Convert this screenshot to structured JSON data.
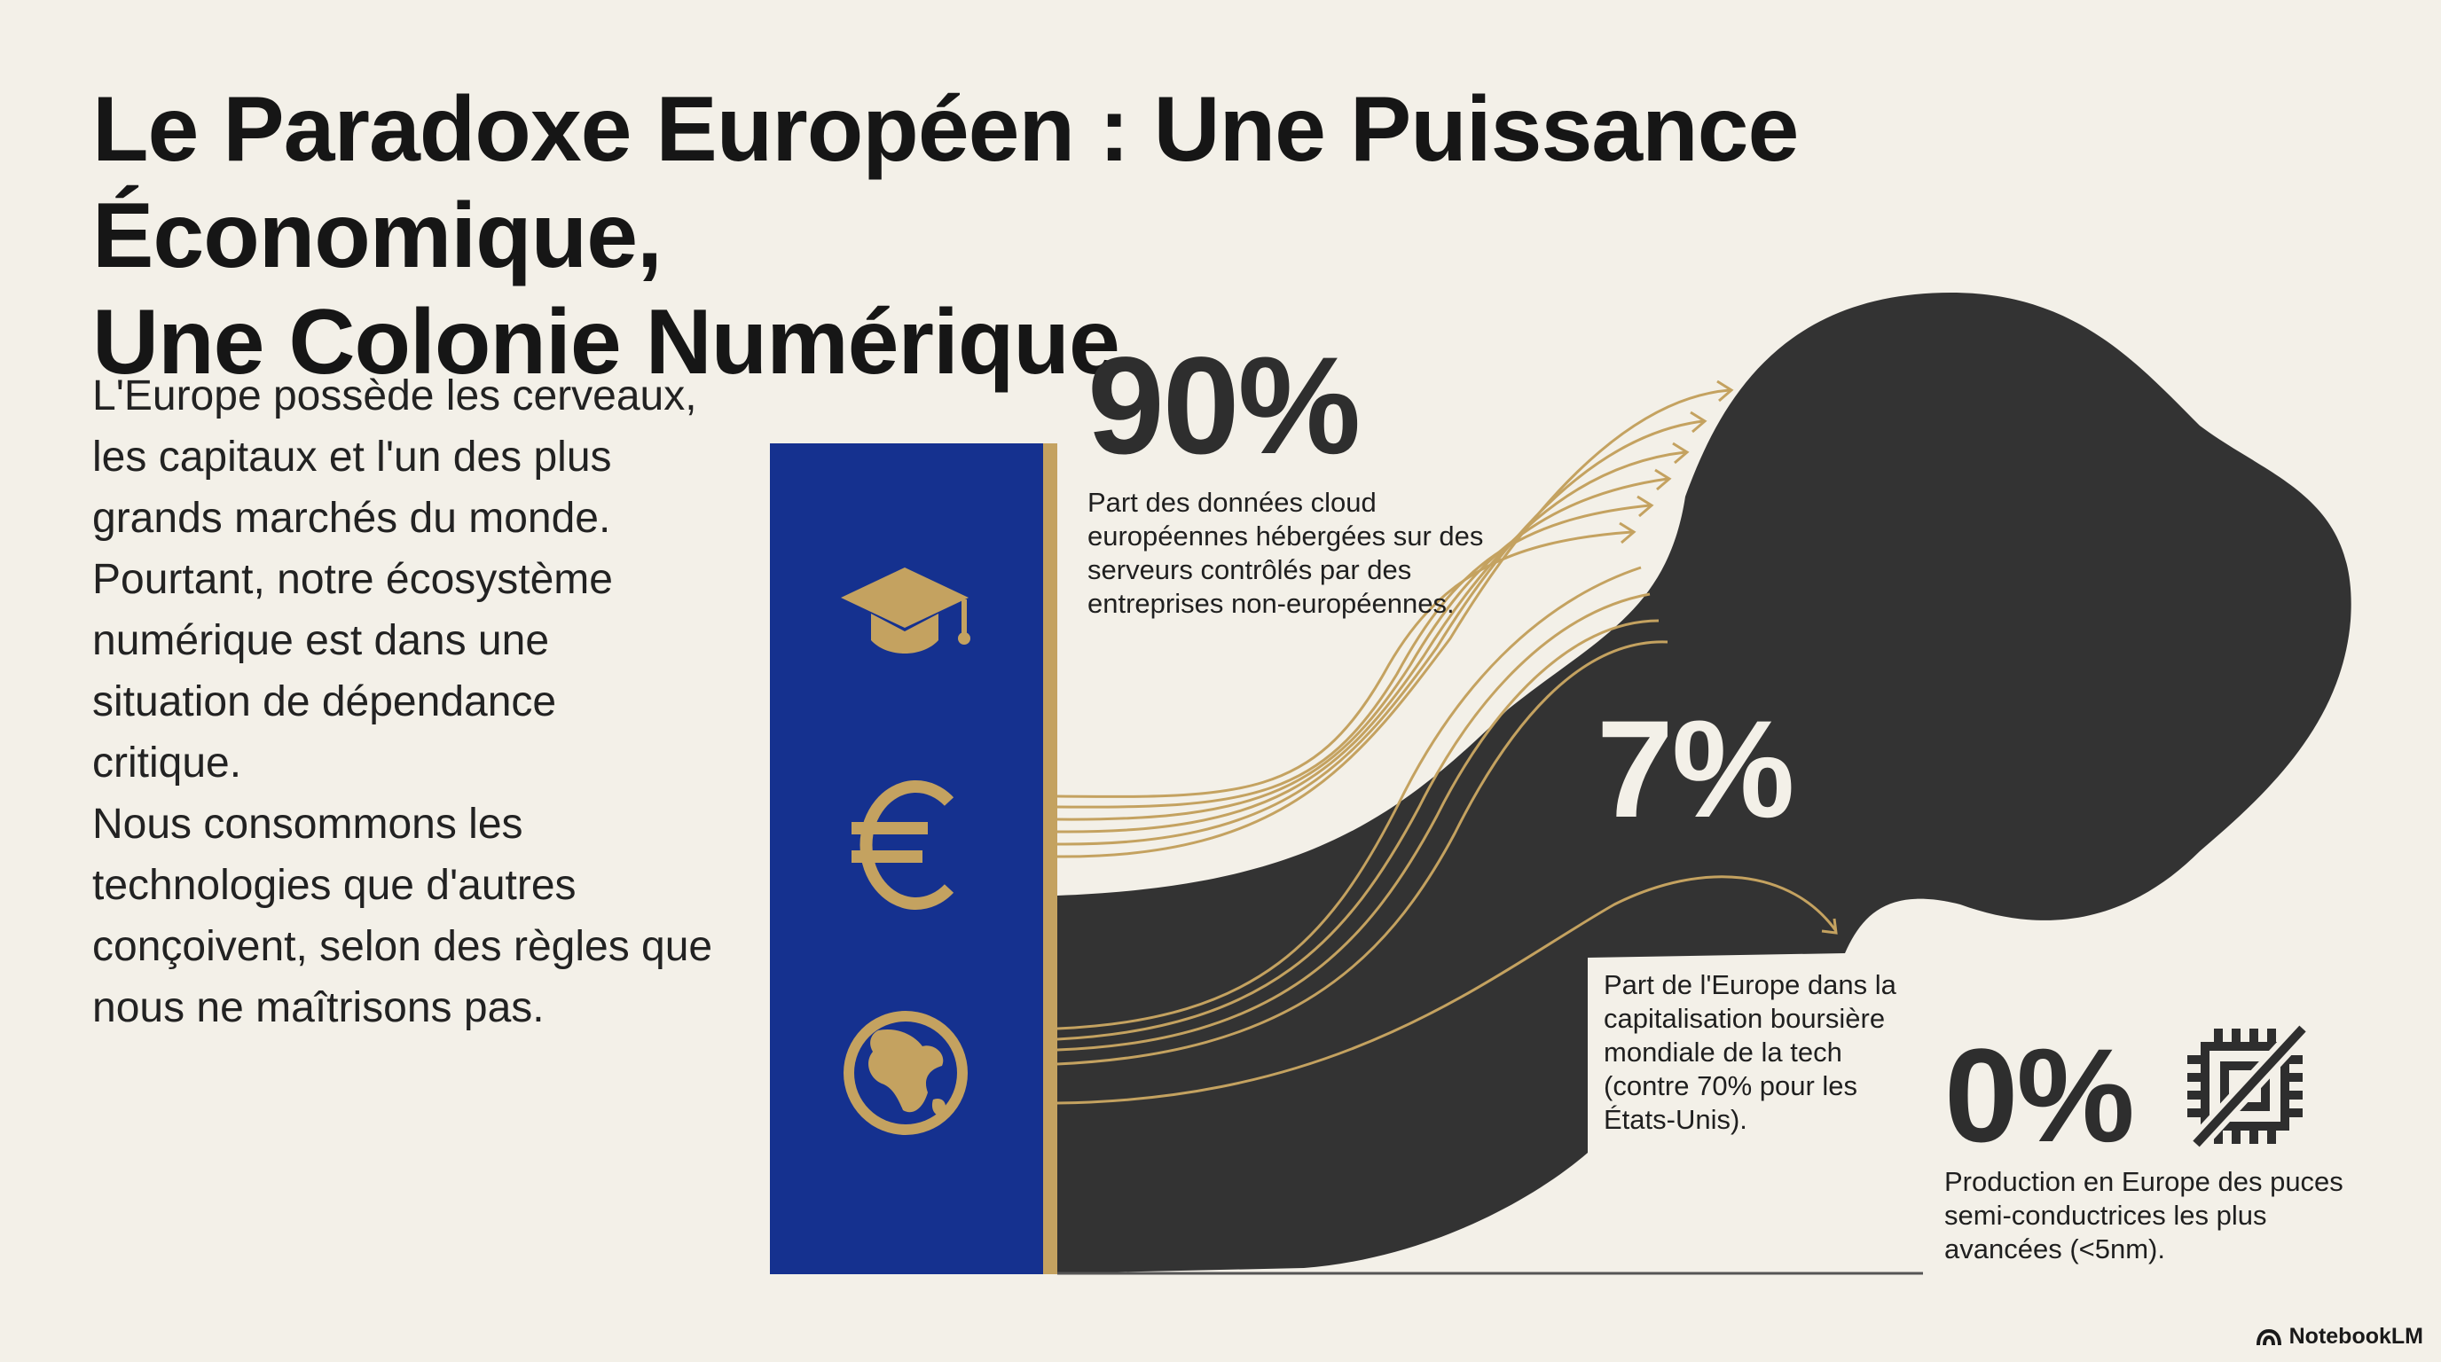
{
  "title": {
    "line1": "Le Paradoxe Européen : Une Puissance Économique,",
    "line2": "Une Colonie Numérique"
  },
  "intro": {
    "paragraph1": "L'Europe possède les cerveaux, les capitaux et l'un des plus grands marchés du monde. Pourtant, notre écosystème numérique est dans une situation de dépendance critique.",
    "paragraph2": "Nous consommons les technologies que d'autres conçoivent, selon des règles que nous ne maîtrisons pas."
  },
  "pillar": {
    "icons": [
      "graduation-cap-icon",
      "euro-icon",
      "globe-icon"
    ],
    "colors": {
      "blue": "#15318f",
      "gold": "#c4a260"
    }
  },
  "stats": {
    "cloud": {
      "value": "90%",
      "label": "Part des données cloud européennes hébergées sur des serveurs contrôlés par des entreprises non-européennes."
    },
    "capitalisation": {
      "value": "7%",
      "label": "Part de l'Europe dans la capitalisation boursière mondiale de la tech (contre 70% pour les États-Unis)."
    },
    "chips": {
      "value": "0%",
      "label": "Production en Europe des puces semi-conductrices les plus avancées (<5nm).",
      "icon": "crossed-chip-icon"
    }
  },
  "colors": {
    "background": "#f3f0e8",
    "dark_mass": "#333333",
    "gold": "#c4a260",
    "blue": "#15318f"
  },
  "brand": {
    "name": "NotebookLM",
    "icon": "notebooklm-logo-icon"
  }
}
